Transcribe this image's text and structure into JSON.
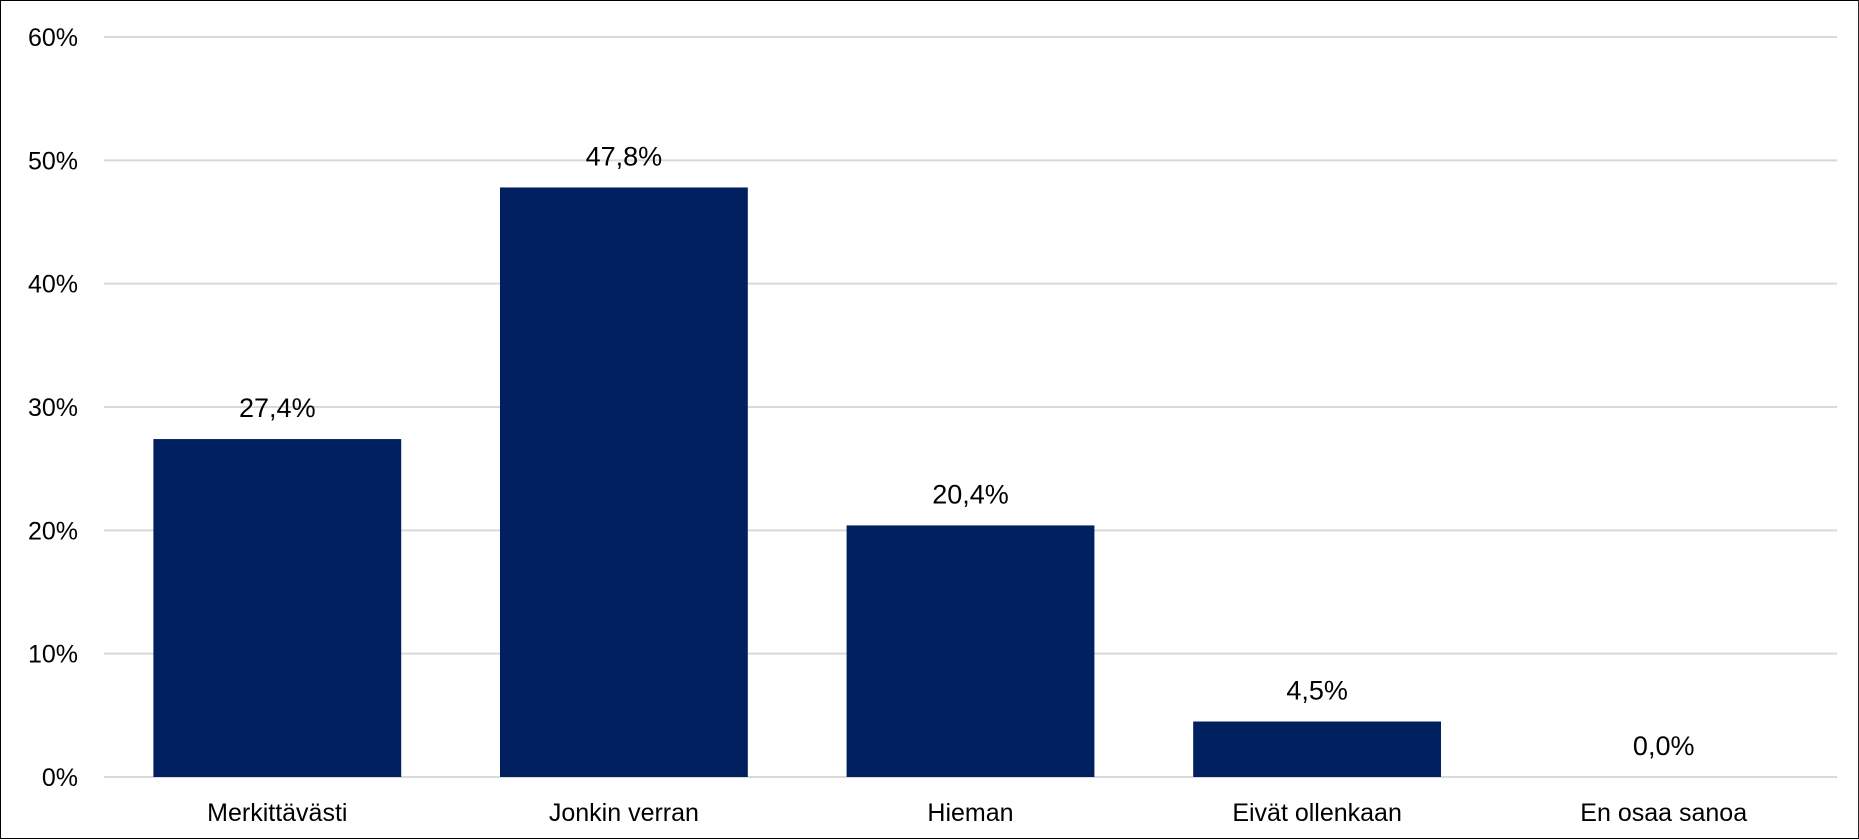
{
  "chart_data": {
    "type": "bar",
    "categories": [
      "Merkittävästi",
      "Jonkin verran",
      "Hieman",
      "Eivät ollenkaan",
      "En osaa sanoa"
    ],
    "values": [
      27.4,
      47.8,
      20.4,
      4.5,
      0.0
    ],
    "data_labels": [
      "27,4%",
      "47,8%",
      "20,4%",
      "4,5%",
      "0,0%"
    ],
    "ylim": [
      0,
      60
    ],
    "yticks": [
      0,
      10,
      20,
      30,
      40,
      50,
      60
    ],
    "ytick_labels": [
      "0%",
      "10%",
      "20%",
      "30%",
      "40%",
      "50%",
      "60%"
    ],
    "title": "",
    "xlabel": "",
    "ylabel": "",
    "grid": "horizontal",
    "legend": "none",
    "bar_color": "#002060",
    "grid_color": "#d9d9d9"
  }
}
